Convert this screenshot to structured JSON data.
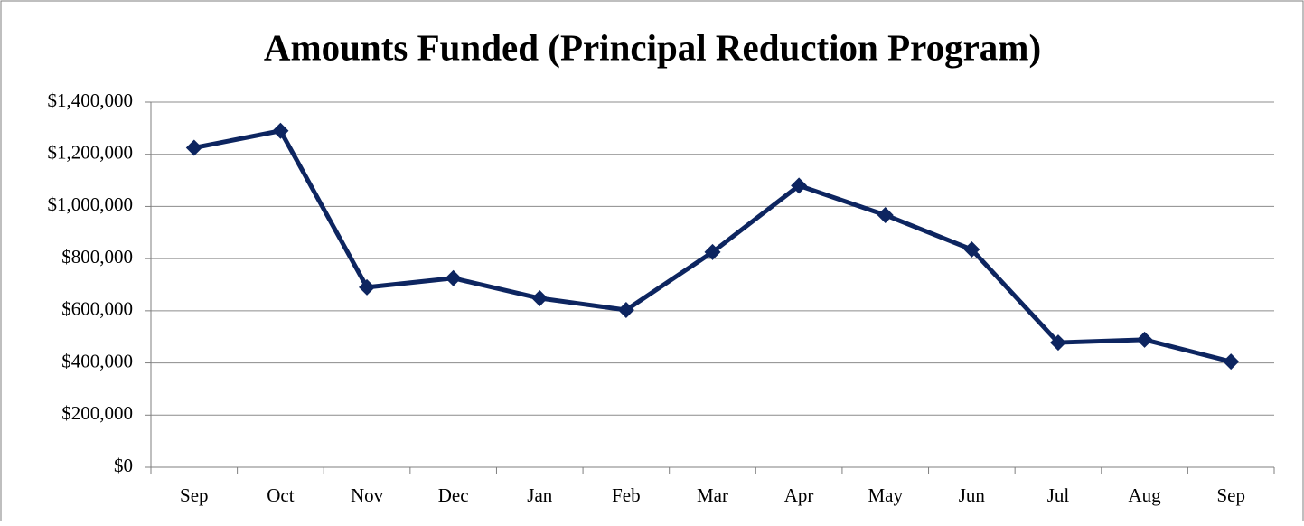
{
  "chart_data": {
    "type": "line",
    "title": "Amounts Funded (Principal Reduction Program)",
    "categories": [
      "Sep",
      "Oct",
      "Nov",
      "Dec",
      "Jan",
      "Feb",
      "Mar",
      "Apr",
      "May",
      "Jun",
      "Jul",
      "Aug",
      "Sep"
    ],
    "series": [
      {
        "color": "#0d2560",
        "values": [
          1225000,
          1290000,
          690000,
          725000,
          648000,
          603000,
          825000,
          1080000,
          967000,
          835000,
          478000,
          489000,
          405000
        ]
      }
    ],
    "ylim": [
      0,
      1400000
    ],
    "yticks": [
      {
        "value": 0,
        "label": "$0"
      },
      {
        "value": 200000,
        "label": "$200,000"
      },
      {
        "value": 400000,
        "label": "$400,000"
      },
      {
        "value": 600000,
        "label": "$600,000"
      },
      {
        "value": 800000,
        "label": "$800,000"
      },
      {
        "value": 1000000,
        "label": "$1,000,000"
      },
      {
        "value": 1200000,
        "label": "$1,200,000"
      },
      {
        "value": 1400000,
        "label": "$1,400,000"
      }
    ],
    "grid": true
  }
}
